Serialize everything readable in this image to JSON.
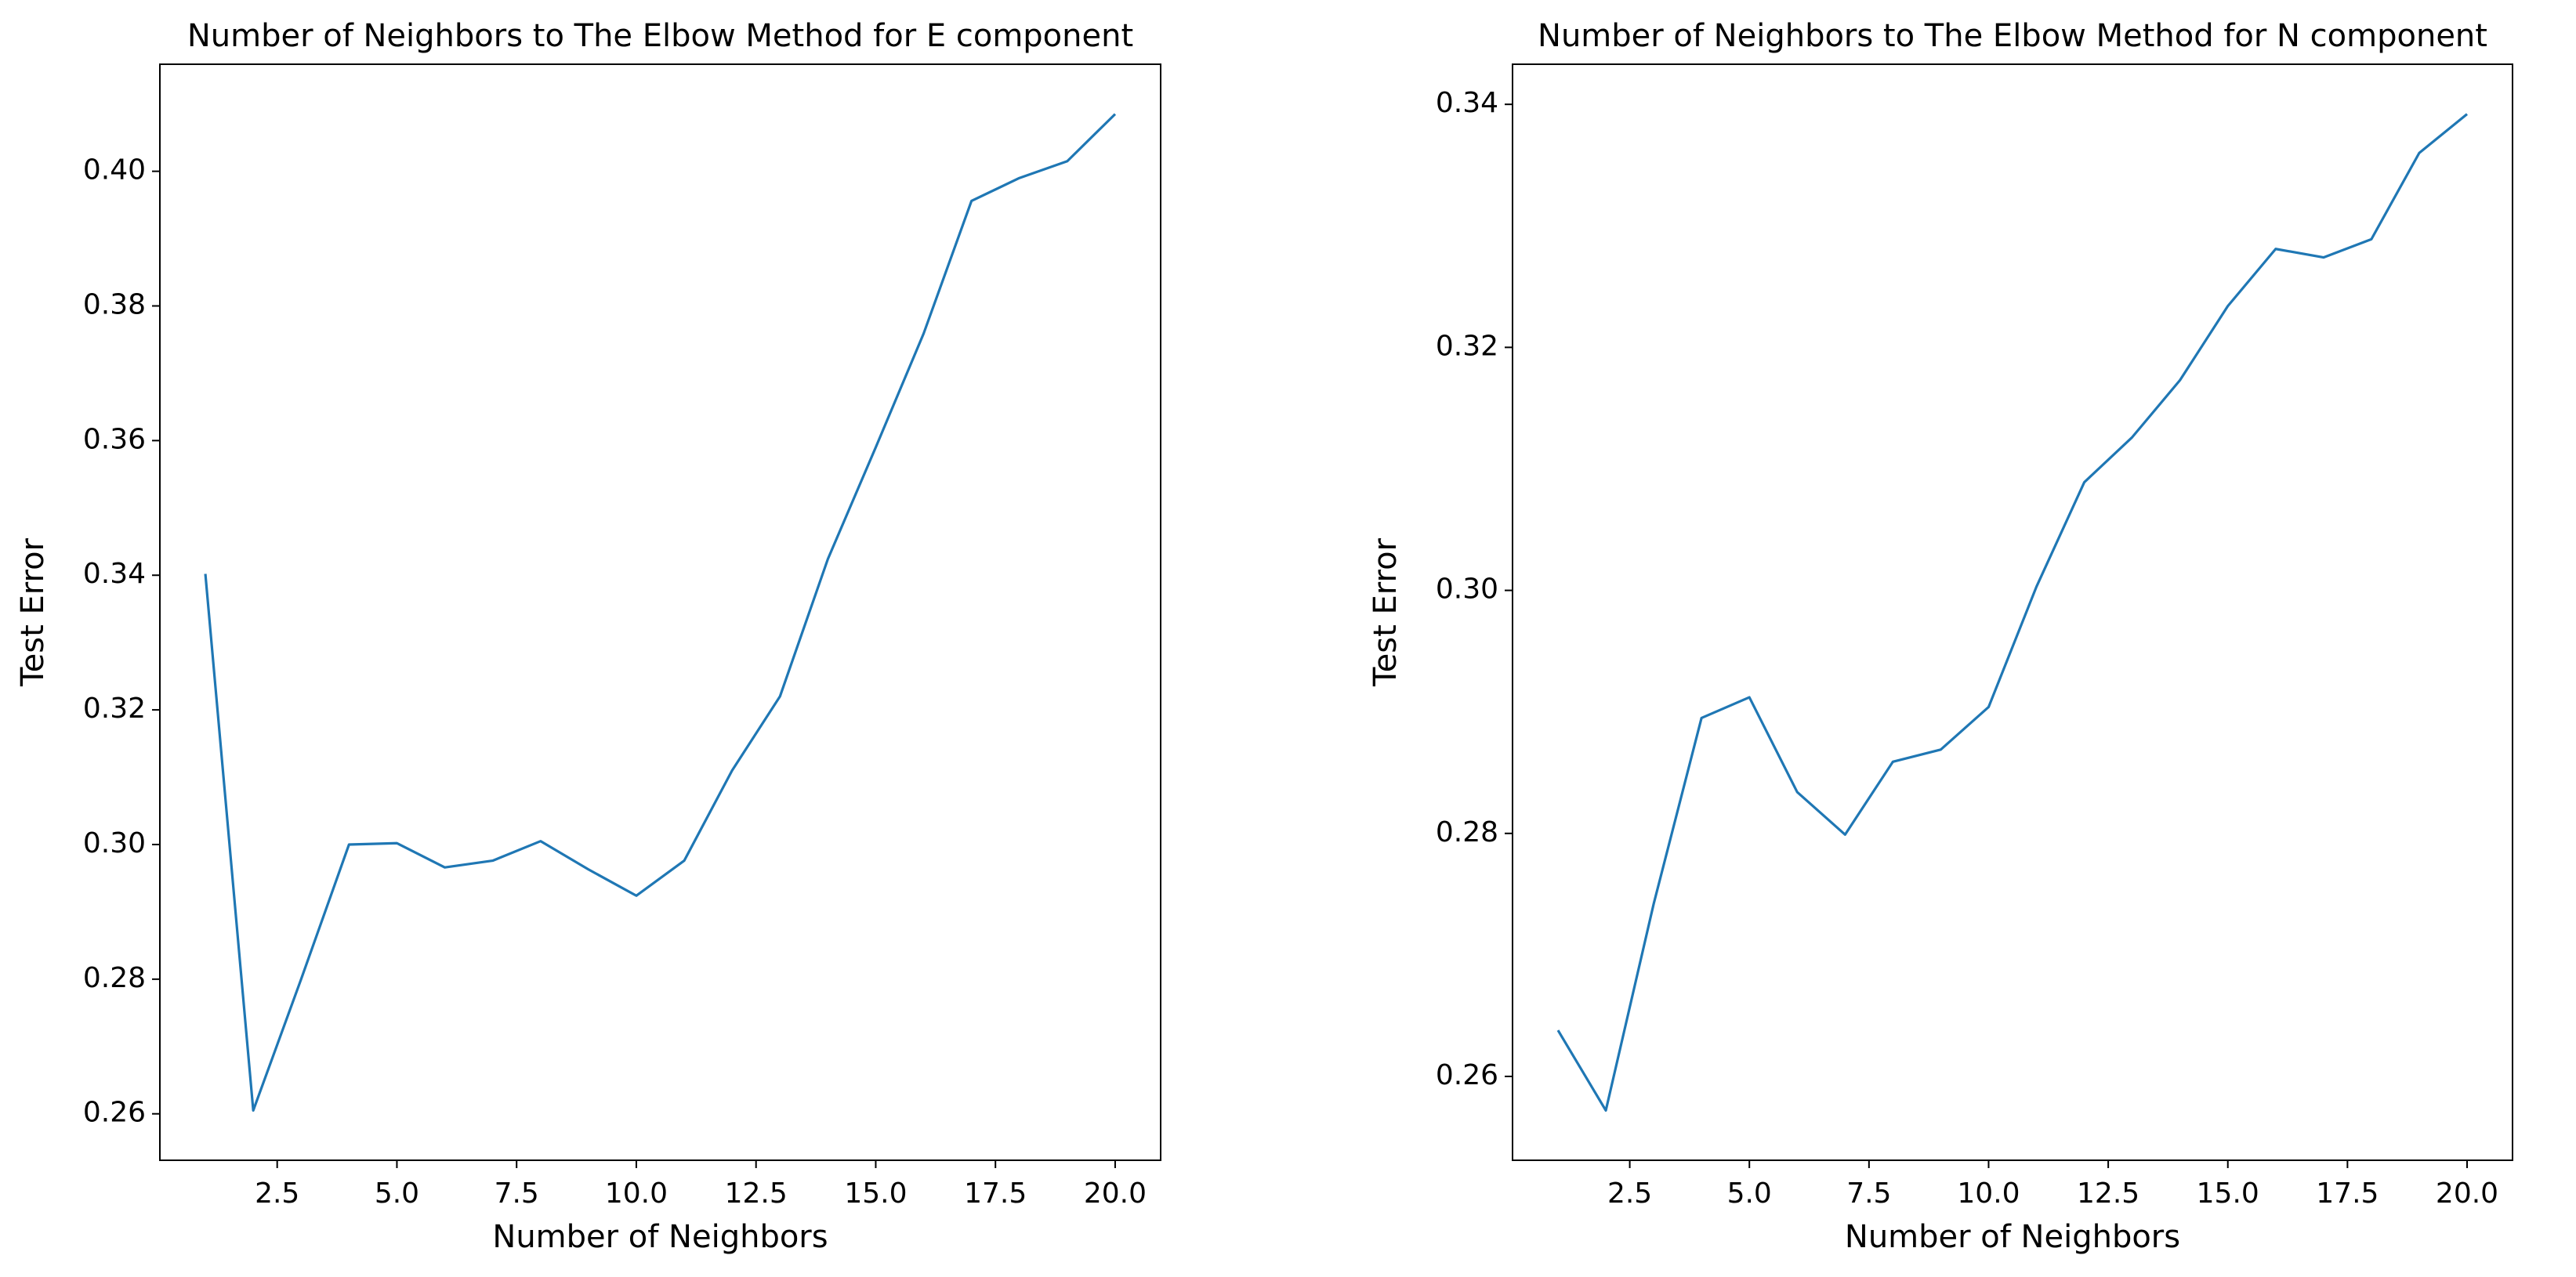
{
  "chart_data": [
    {
      "type": "line",
      "title": "Number of Neighbors to The Elbow Method for E component",
      "xlabel": "Number of Neighbors",
      "ylabel": "Test Error",
      "x": [
        1,
        2,
        3,
        4,
        5,
        6,
        7,
        8,
        9,
        10,
        11,
        12,
        13,
        14,
        15,
        16,
        17,
        18,
        19,
        20
      ],
      "values": [
        0.3402,
        0.2605,
        0.28,
        0.3,
        0.3002,
        0.2966,
        0.2976,
        0.3005,
        0.2963,
        0.2924,
        0.2976,
        0.311,
        0.322,
        0.3424,
        0.359,
        0.3759,
        0.3956,
        0.399,
        0.4015,
        0.4085
      ],
      "color": "#1f77b4",
      "xlim": [
        0.05,
        20.95
      ],
      "xticks": [
        2.5,
        {
          "value": 5,
          "label": "5.0"
        },
        7.5,
        {
          "value": 10,
          "label": "10.0"
        },
        12.5,
        {
          "value": 15,
          "label": "15.0"
        },
        17.5,
        {
          "value": 20,
          "label": "20.0"
        }
      ],
      "ylim": [
        0.2531,
        0.4159
      ],
      "yticks": [
        0.26,
        0.28,
        {
          "value": 0.3,
          "label": "0.30"
        },
        0.32,
        0.34,
        0.36,
        0.38,
        {
          "value": 0.4,
          "label": "0.40"
        }
      ]
    },
    {
      "type": "line",
      "title": "Number of Neighbors to The Elbow Method for N component",
      "xlabel": "Number of Neighbors",
      "ylabel": "Test Error",
      "x": [
        1,
        2,
        3,
        4,
        5,
        6,
        7,
        8,
        9,
        10,
        11,
        12,
        13,
        14,
        15,
        16,
        17,
        18,
        19,
        20
      ],
      "values": [
        0.2638,
        0.2572,
        0.2742,
        0.2895,
        0.2912,
        0.2834,
        0.2799,
        0.2859,
        0.2869,
        0.2904,
        0.3003,
        0.3089,
        0.3126,
        0.3173,
        0.3234,
        0.3281,
        0.3274,
        0.3289,
        0.336,
        0.3392
      ],
      "color": "#1f77b4",
      "xlim": [
        0.05,
        20.95
      ],
      "xticks": [
        2.5,
        {
          "value": 5,
          "label": "5.0"
        },
        7.5,
        {
          "value": 10,
          "label": "10.0"
        },
        12.5,
        {
          "value": 15,
          "label": "15.0"
        },
        17.5,
        {
          "value": 20,
          "label": "20.0"
        }
      ],
      "ylim": [
        0.2531,
        0.3433
      ],
      "yticks": [
        0.26,
        0.28,
        {
          "value": 0.3,
          "label": "0.30"
        },
        0.32,
        0.34
      ]
    }
  ]
}
